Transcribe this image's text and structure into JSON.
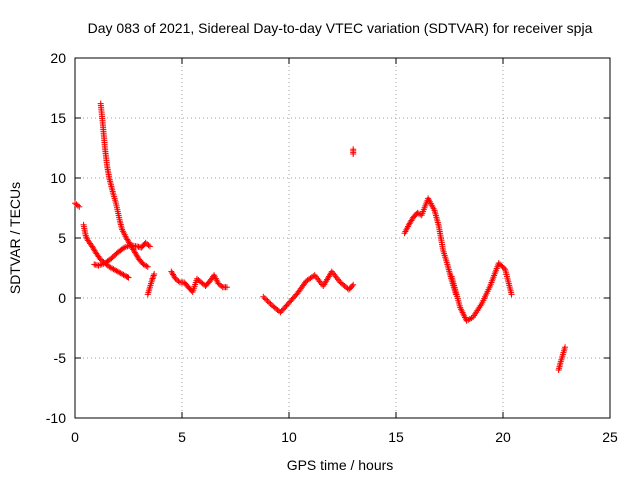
{
  "chart_data": {
    "type": "scatter",
    "title": "Day 083 of 2021, Sidereal Day-to-day VTEC variation (SDTVAR) for receiver spja",
    "xlabel": "GPS time / hours",
    "ylabel": "SDTVAR / TECUs",
    "xlim": [
      0,
      25
    ],
    "ylim": [
      -10,
      20
    ],
    "xticks": [
      0,
      5,
      10,
      15,
      20,
      25
    ],
    "yticks": [
      -10,
      -5,
      0,
      5,
      10,
      15,
      20
    ],
    "grid": true,
    "marker": "+",
    "color": "#ff0000",
    "segments": [
      {
        "name": "start",
        "x": [
          0.0,
          0.2
        ],
        "y": [
          7.9,
          7.6
        ]
      },
      {
        "name": "steep-decay",
        "x": [
          1.2,
          1.3,
          1.4,
          1.5,
          1.6,
          1.7,
          1.8,
          1.9,
          2.0,
          2.1,
          2.2,
          2.4,
          2.6,
          2.8,
          3.0,
          3.2,
          3.4
        ],
        "y": [
          16.2,
          14.5,
          12.5,
          11.0,
          10.0,
          9.3,
          8.6,
          8.0,
          7.2,
          6.4,
          5.7,
          5.0,
          4.4,
          3.8,
          3.2,
          2.8,
          2.6
        ]
      },
      {
        "name": "low-branch",
        "x": [
          0.4,
          0.5,
          0.6,
          0.8,
          1.0,
          1.2,
          1.4,
          1.6,
          1.8,
          2.0,
          2.2,
          2.4,
          2.5
        ],
        "y": [
          6.1,
          5.2,
          4.8,
          4.3,
          3.7,
          3.2,
          2.9,
          2.6,
          2.4,
          2.2,
          2.0,
          1.8,
          1.7
        ]
      },
      {
        "name": "rising-branch",
        "x": [
          0.9,
          1.1,
          1.4,
          1.7,
          2.0,
          2.3,
          2.6,
          2.9,
          3.1,
          3.3,
          3.5
        ],
        "y": [
          2.8,
          2.7,
          2.9,
          3.3,
          3.8,
          4.2,
          4.4,
          4.3,
          4.2,
          4.6,
          4.3
        ]
      },
      {
        "name": "lower-spike",
        "x": [
          3.4,
          3.5,
          3.6,
          3.7
        ],
        "y": [
          0.3,
          0.9,
          1.5,
          2.0
        ]
      },
      {
        "name": "mid-cluster",
        "x": [
          4.5,
          4.7,
          4.9,
          5.1,
          5.3,
          5.5,
          5.7,
          5.9,
          6.1,
          6.3,
          6.5,
          6.7,
          6.9,
          7.1
        ],
        "y": [
          2.2,
          1.6,
          1.3,
          1.3,
          0.9,
          0.5,
          1.6,
          1.3,
          1.0,
          1.4,
          1.9,
          1.2,
          0.9,
          0.9
        ]
      },
      {
        "name": "midday-wave",
        "x": [
          8.8,
          9.2,
          9.6,
          10.0,
          10.4,
          10.8,
          11.2,
          11.6,
          12.0,
          12.4,
          12.8,
          13.0
        ],
        "y": [
          0.1,
          -0.6,
          -1.2,
          -0.4,
          0.4,
          1.4,
          1.9,
          1.0,
          2.2,
          1.3,
          0.7,
          1.1
        ]
      },
      {
        "name": "outlier",
        "x": [
          13.0,
          13.0
        ],
        "y": [
          12.4,
          12.0
        ]
      },
      {
        "name": "afternoon-rise",
        "x": [
          15.4,
          15.6,
          15.8,
          16.0,
          16.2,
          16.5,
          16.8,
          17.0,
          17.2,
          17.4,
          17.6,
          17.8
        ],
        "y": [
          5.4,
          6.1,
          6.7,
          7.1,
          6.9,
          8.3,
          7.3,
          6.0,
          4.0,
          2.8,
          1.5,
          0.3
        ]
      },
      {
        "name": "evening-dip",
        "x": [
          17.6,
          18.0,
          18.3,
          18.6,
          19.0,
          19.4,
          19.8,
          20.1,
          20.4
        ],
        "y": [
          1.8,
          -0.8,
          -1.9,
          -1.6,
          -0.5,
          1.0,
          2.9,
          2.4,
          0.3
        ]
      },
      {
        "name": "late-negative",
        "x": [
          22.6,
          22.7,
          22.8,
          22.9
        ],
        "y": [
          -6.0,
          -5.3,
          -4.7,
          -4.1
        ]
      }
    ]
  }
}
